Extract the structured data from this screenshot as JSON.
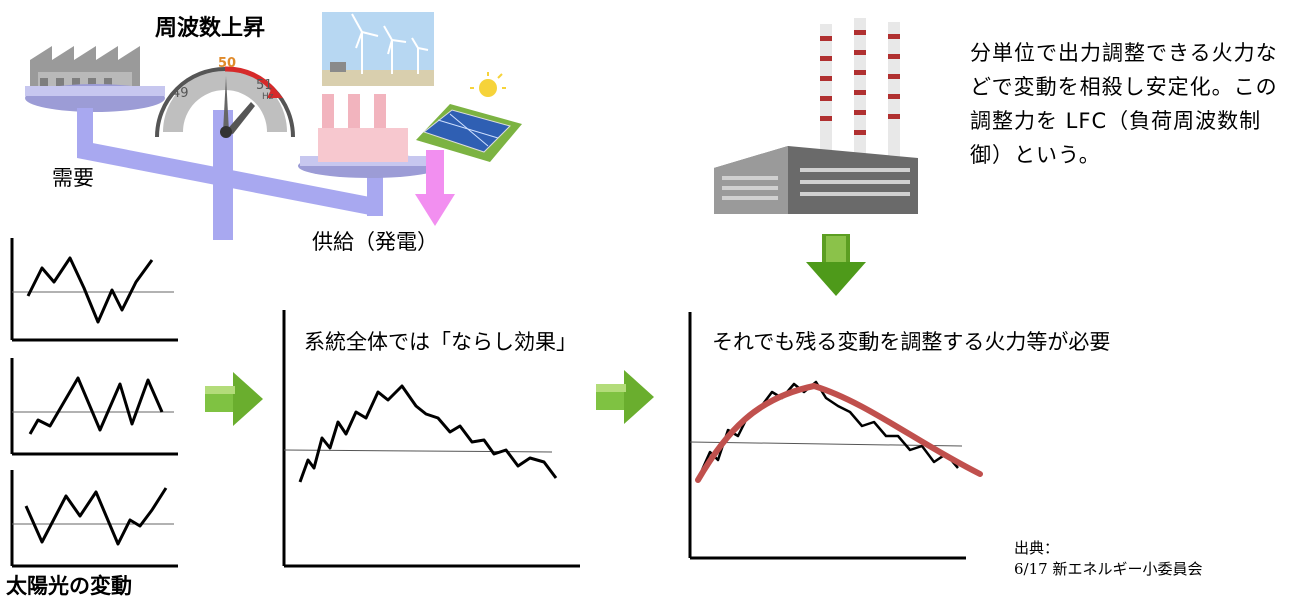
{
  "balance": {
    "frequency_label": "周波数上昇",
    "demand_label": "需要",
    "supply_label": "供給（発電）",
    "gauge": {
      "left_value": "49",
      "center_value": "50",
      "right_value": "51",
      "unit": "Hz"
    }
  },
  "lfc_description": "分単位で出力調整できる火力などで変動を相殺し安定化。この調整力を LFC（負荷周波数制御）という。",
  "solar_label": "太陽光の変動",
  "smoothing_label": "系統全体では「ならし効果」",
  "remaining_label": "それでも残る変動を調整する火力等が必要",
  "source": {
    "line1": "出典：",
    "line2": "6/17 新エネルギー小委員会"
  },
  "colors": {
    "beam": "#a8a8f0",
    "pink_arrow": "#f28ff0",
    "green_arrow": "#7fc242",
    "dark_green_arrow": "#4e9a1a",
    "trend_curve": "#c0504d"
  }
}
